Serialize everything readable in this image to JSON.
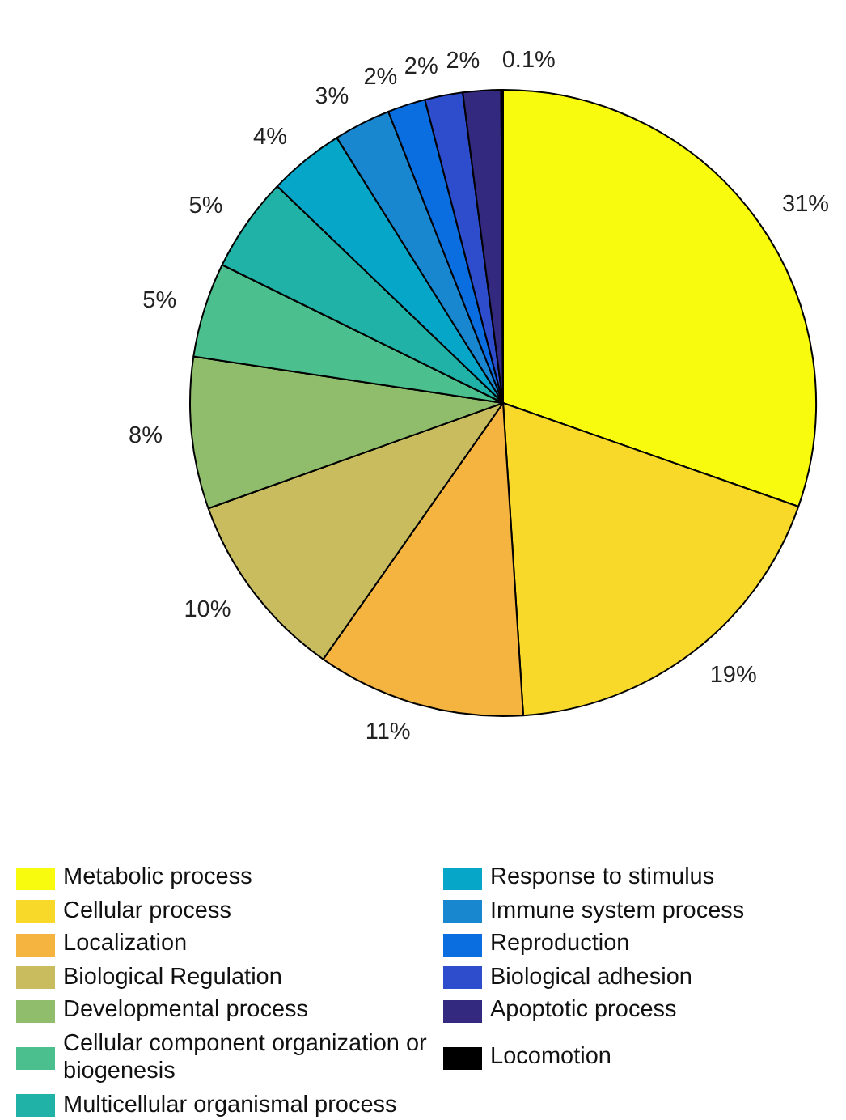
{
  "chart_data": {
    "type": "pie",
    "categories": [
      "Metabolic process",
      "Cellular process",
      "Localization",
      "Biological Regulation",
      "Developmental process",
      "Cellular component organization or biogenesis",
      "Multicellular organismal process",
      "Response to stimulus",
      "Immune system process",
      "Reproduction",
      "Biological adhesion",
      "Apoptotic process",
      "Locomotion"
    ],
    "values": [
      31,
      19,
      11,
      10,
      8,
      5,
      5,
      4,
      3,
      2,
      2,
      2,
      0.1
    ],
    "value_labels": [
      "31%",
      "19%",
      "11%",
      "10%",
      "8%",
      "5%",
      "5%",
      "4%",
      "3%",
      "2%",
      "2%",
      "2%",
      "0.1%"
    ],
    "colors": [
      "#f9fb0e",
      "#f8d92a",
      "#f5b43f",
      "#c8bc5e",
      "#8fbd6c",
      "#4cbf8f",
      "#20b2a6",
      "#06a6c8",
      "#1887d0",
      "#0a6ee0",
      "#2d4dcc",
      "#332a80",
      "#000000"
    ],
    "legend": "bottom"
  }
}
